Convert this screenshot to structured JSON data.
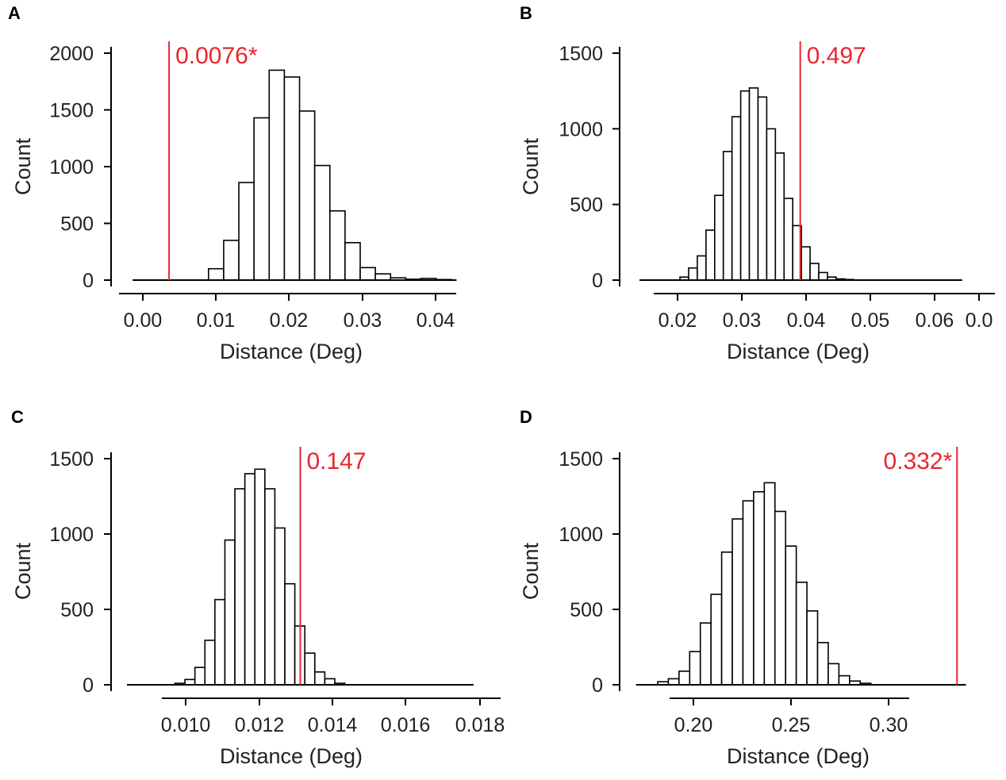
{
  "chart_data": [
    {
      "type": "bar",
      "panel": "A",
      "xlabel": "Distance (Deg)",
      "ylabel": "Count",
      "xticks": [
        "0.00",
        "0.01",
        "0.02",
        "0.03",
        "0.04"
      ],
      "yticks": [
        "0",
        "500",
        "1000",
        "1500",
        "2000"
      ],
      "ylim": [
        0,
        2000
      ],
      "xlim": [
        -0.001,
        0.0445
      ],
      "range": [
        0.0008,
        0.0435
      ],
      "bin_width": 0.002,
      "bins": [
        {
          "x0": 0.0108,
          "count": 100
        },
        {
          "x0": 0.0128,
          "count": 350
        },
        {
          "x0": 0.0148,
          "count": 860
        },
        {
          "x0": 0.0168,
          "count": 1430
        },
        {
          "x0": 0.0188,
          "count": 1850
        },
        {
          "x0": 0.0208,
          "count": 1790
        },
        {
          "x0": 0.0228,
          "count": 1490
        },
        {
          "x0": 0.0248,
          "count": 1010
        },
        {
          "x0": 0.0268,
          "count": 610
        },
        {
          "x0": 0.0288,
          "count": 330
        },
        {
          "x0": 0.0308,
          "count": 110
        },
        {
          "x0": 0.0328,
          "count": 55
        },
        {
          "x0": 0.0348,
          "count": 20
        },
        {
          "x0": 0.0368,
          "count": 8
        },
        {
          "x0": 0.0388,
          "count": 15
        },
        {
          "x0": 0.0408,
          "count": 5
        }
      ],
      "ref_value": 0.0056,
      "ref_label": "0.0076*",
      "ref_label_side": "right"
    },
    {
      "type": "bar",
      "panel": "B",
      "xlabel": "Distance (Deg)",
      "ylabel": "Count",
      "xticks": [
        "0.02",
        "0.03",
        "0.04",
        "0.05",
        "0.06",
        "0.0"
      ],
      "yticks": [
        "0",
        "500",
        "1000",
        "1500"
      ],
      "ylim": [
        0,
        1500
      ],
      "xlim": [
        0.0108,
        0.0713
      ],
      "range": [
        0.013,
        0.0688
      ],
      "bin_width": 0.0015,
      "bins": [
        {
          "x0": 0.02,
          "count": 20
        },
        {
          "x0": 0.0215,
          "count": 80
        },
        {
          "x0": 0.023,
          "count": 160
        },
        {
          "x0": 0.0245,
          "count": 330
        },
        {
          "x0": 0.026,
          "count": 560
        },
        {
          "x0": 0.0275,
          "count": 850
        },
        {
          "x0": 0.029,
          "count": 1080
        },
        {
          "x0": 0.0305,
          "count": 1250
        },
        {
          "x0": 0.032,
          "count": 1270
        },
        {
          "x0": 0.0335,
          "count": 1210
        },
        {
          "x0": 0.035,
          "count": 1000
        },
        {
          "x0": 0.0365,
          "count": 840
        },
        {
          "x0": 0.038,
          "count": 540
        },
        {
          "x0": 0.0395,
          "count": 360
        },
        {
          "x0": 0.041,
          "count": 220
        },
        {
          "x0": 0.0425,
          "count": 110
        },
        {
          "x0": 0.044,
          "count": 50
        },
        {
          "x0": 0.0455,
          "count": 20
        },
        {
          "x0": 0.047,
          "count": 8
        },
        {
          "x0": 0.0485,
          "count": 4
        }
      ],
      "ref_value": 0.0408,
      "ref_label": "0.497",
      "ref_label_side": "right"
    },
    {
      "type": "bar",
      "panel": "C",
      "xlabel": "Distance (Deg)",
      "ylabel": "Count",
      "xticks": [
        "0.010",
        "0.012",
        "0.014",
        "0.016",
        "0.018"
      ],
      "yticks": [
        "0",
        "500",
        "1000",
        "1500"
      ],
      "ylim": [
        0,
        1500
      ],
      "xlim": [
        0.00794,
        0.01803
      ],
      "range": [
        0.00816,
        0.0177
      ],
      "bin_width": 0.000275,
      "bins": [
        {
          "x0": 0.00948,
          "count": 10
        },
        {
          "x0": 0.009755,
          "count": 35
        },
        {
          "x0": 0.01003,
          "count": 115
        },
        {
          "x0": 0.010305,
          "count": 295
        },
        {
          "x0": 0.01058,
          "count": 565
        },
        {
          "x0": 0.010855,
          "count": 960
        },
        {
          "x0": 0.01113,
          "count": 1300
        },
        {
          "x0": 0.011405,
          "count": 1400
        },
        {
          "x0": 0.01168,
          "count": 1430
        },
        {
          "x0": 0.011955,
          "count": 1300
        },
        {
          "x0": 0.01223,
          "count": 1040
        },
        {
          "x0": 0.012505,
          "count": 670
        },
        {
          "x0": 0.01278,
          "count": 390
        },
        {
          "x0": 0.013055,
          "count": 210
        },
        {
          "x0": 0.01333,
          "count": 85
        },
        {
          "x0": 0.013605,
          "count": 40
        },
        {
          "x0": 0.01388,
          "count": 10
        }
      ],
      "ref_value": 0.01293,
      "ref_label": "0.147",
      "ref_label_side": "right"
    },
    {
      "type": "bar",
      "panel": "D",
      "xlabel": "Distance (Deg)",
      "ylabel": "Count",
      "xticks": [
        "0.20",
        "0.25",
        "0.30"
      ],
      "yticks": [
        "0",
        "500",
        "1000",
        "1500"
      ],
      "ylim": [
        0,
        1500
      ],
      "xlim": [
        0.1492,
        0.3467
      ],
      "range": [
        0.1545,
        0.3433
      ],
      "bin_width": 0.0061,
      "bins": [
        {
          "x0": 0.1669,
          "count": 20
        },
        {
          "x0": 0.173,
          "count": 40
        },
        {
          "x0": 0.1791,
          "count": 90
        },
        {
          "x0": 0.1852,
          "count": 220
        },
        {
          "x0": 0.1913,
          "count": 410
        },
        {
          "x0": 0.1974,
          "count": 600
        },
        {
          "x0": 0.2035,
          "count": 880
        },
        {
          "x0": 0.2096,
          "count": 1100
        },
        {
          "x0": 0.2157,
          "count": 1220
        },
        {
          "x0": 0.2218,
          "count": 1280
        },
        {
          "x0": 0.2279,
          "count": 1340
        },
        {
          "x0": 0.234,
          "count": 1150
        },
        {
          "x0": 0.2401,
          "count": 920
        },
        {
          "x0": 0.2462,
          "count": 680
        },
        {
          "x0": 0.2523,
          "count": 490
        },
        {
          "x0": 0.2584,
          "count": 280
        },
        {
          "x0": 0.2645,
          "count": 140
        },
        {
          "x0": 0.2706,
          "count": 60
        },
        {
          "x0": 0.2767,
          "count": 25
        },
        {
          "x0": 0.2828,
          "count": 10
        }
      ],
      "ref_value": 0.3382,
      "ref_label": "0.332*",
      "ref_label_side": "left"
    }
  ],
  "colors": {
    "accent": "#e8272f",
    "bar_fill": "#ffffff",
    "bar_stroke": "#000000"
  }
}
